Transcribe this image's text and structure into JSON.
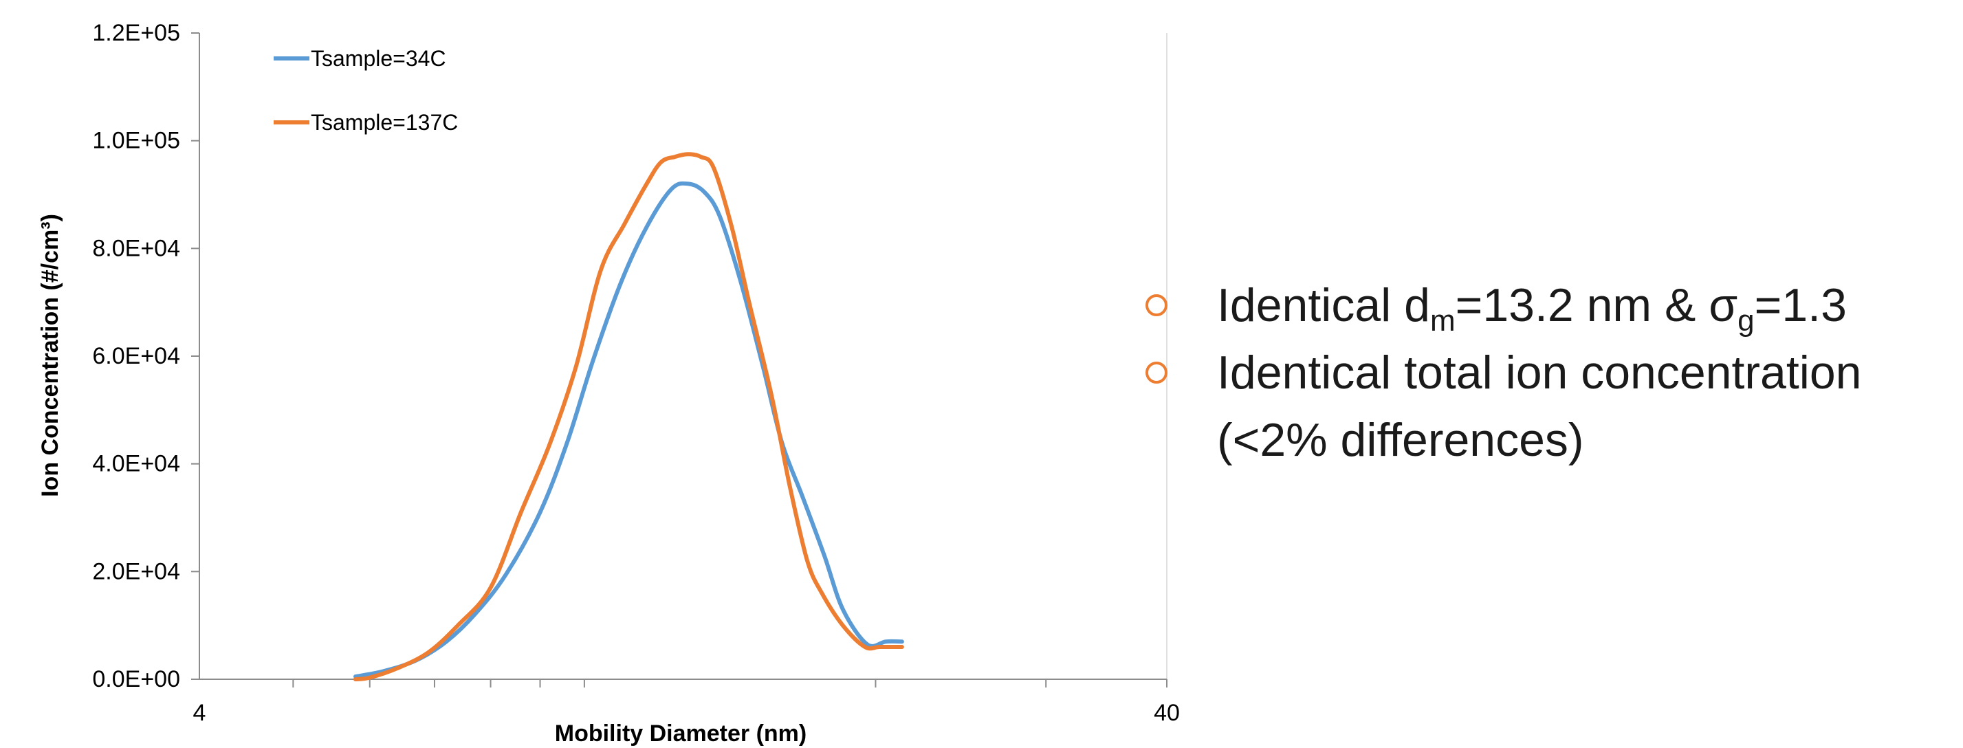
{
  "chart_data": {
    "type": "line",
    "xlabel": "Mobility Diameter (nm)",
    "ylabel": "Ion Concentration (#/cm³)",
    "x_scale": "log",
    "xlim": [
      4,
      40
    ],
    "x_tick_labels": [
      "4",
      "40"
    ],
    "ylim": [
      0,
      120000
    ],
    "y_tick_labels": [
      "0.0E+00",
      "2.0E+04",
      "4.0E+04",
      "6.0E+04",
      "8.0E+04",
      "1.0E+05",
      "1.2E+05"
    ],
    "grid": false,
    "legend": "top-left",
    "series": [
      {
        "name": "Tsample=34C",
        "color": "#5B9BD5",
        "x": [
          5.8,
          6.2,
          6.7,
          7.2,
          7.7,
          8.3,
          9.0,
          9.6,
          10.2,
          10.9,
          11.6,
          12.3,
          12.8,
          13.3,
          13.8,
          14.5,
          15.3,
          16.0,
          16.8,
          17.7,
          18.5,
          19.6,
          20.5,
          21.3
        ],
        "y": [
          500,
          1500,
          3500,
          7000,
          12000,
          19500,
          31000,
          44000,
          59000,
          73500,
          84000,
          91000,
          92000,
          90500,
          86000,
          74000,
          58000,
          44000,
          34000,
          23000,
          13000,
          6500,
          7000,
          7000
        ]
      },
      {
        "name": "Tsample=137C",
        "color": "#ED7D31",
        "x": [
          5.8,
          6.0,
          6.4,
          6.9,
          7.4,
          8.0,
          8.6,
          9.2,
          9.8,
          10.4,
          11.0,
          11.6,
          12.0,
          12.4,
          12.8,
          13.2,
          13.6,
          14.2,
          14.8,
          15.6,
          16.3,
          17.0,
          17.6,
          18.5,
          19.5,
          20.2,
          21.3
        ],
        "y": [
          0,
          300,
          2000,
          5000,
          10000,
          17000,
          31000,
          43500,
          58000,
          76000,
          84500,
          92000,
          96000,
          97000,
          97500,
          97000,
          95000,
          84000,
          70000,
          53000,
          36000,
          22000,
          16000,
          10000,
          6000,
          6000,
          6000
        ]
      }
    ]
  },
  "bullets": {
    "item1": {
      "prefix": "Identical d",
      "sub1": "m",
      "middle": "=13.2 nm & σ",
      "sub2": "g",
      "suffix": "=1.3"
    },
    "item2_line1": "Identical total ion concentration",
    "item2_line2": "(<2% differences)"
  }
}
